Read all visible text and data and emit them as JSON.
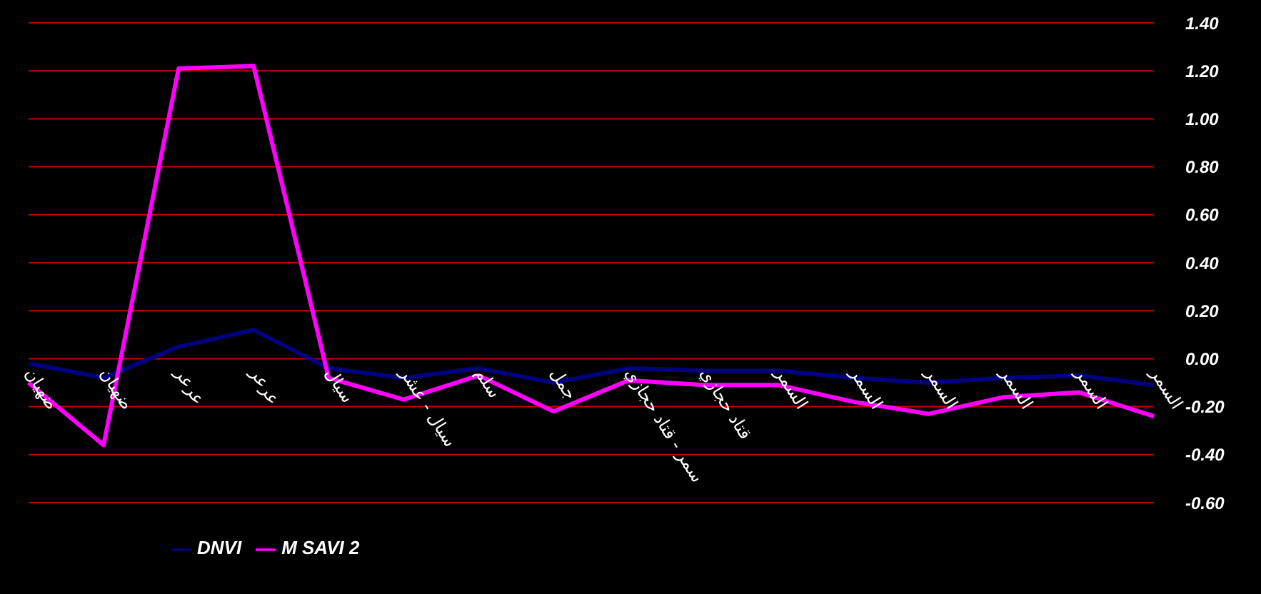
{
  "chart_data": {
    "type": "line",
    "categories": [
      "ضهيان",
      "ضهيان",
      "عرعر",
      "عرعر",
      "سيال",
      "سيال - عشر",
      "سلم",
      "جمل",
      "سمر - قتاد حجازي",
      "قتاد حجازي",
      "السمر",
      "السمر",
      "السمر",
      "السمر",
      "السمر",
      "السمر"
    ],
    "series": [
      {
        "name": "DNVI",
        "color": "#000080",
        "values": [
          -0.02,
          -0.08,
          0.05,
          0.12,
          -0.04,
          -0.08,
          -0.04,
          -0.1,
          -0.04,
          -0.05,
          -0.05,
          -0.08,
          -0.1,
          -0.08,
          -0.07,
          -0.11
        ]
      },
      {
        "name": "M SAVI 2",
        "color": "#ff00ff",
        "values": [
          -0.1,
          -0.36,
          1.21,
          1.22,
          -0.08,
          -0.17,
          -0.07,
          -0.22,
          -0.09,
          -0.11,
          -0.11,
          -0.18,
          -0.23,
          -0.16,
          -0.14,
          -0.24
        ]
      }
    ],
    "ylim": [
      -0.6,
      1.4
    ],
    "yticks": [
      {
        "value": -0.6,
        "label": "-0.60"
      },
      {
        "value": -0.4,
        "label": "-0.40"
      },
      {
        "value": -0.2,
        "label": "-0.20"
      },
      {
        "value": 0,
        "label": "0.00"
      },
      {
        "value": 0.2,
        "label": "0.20"
      },
      {
        "value": 0.4,
        "label": "0.40"
      },
      {
        "value": 0.6,
        "label": "0.60"
      },
      {
        "value": 0.8,
        "label": "0.80"
      },
      {
        "value": 1.0,
        "label": "1.00"
      },
      {
        "value": 1.2,
        "label": "1.20"
      },
      {
        "value": 1.4,
        "label": "1.40"
      }
    ],
    "grid": "y",
    "legend": "bottom left",
    "marker": "none",
    "line_style": "solid"
  }
}
